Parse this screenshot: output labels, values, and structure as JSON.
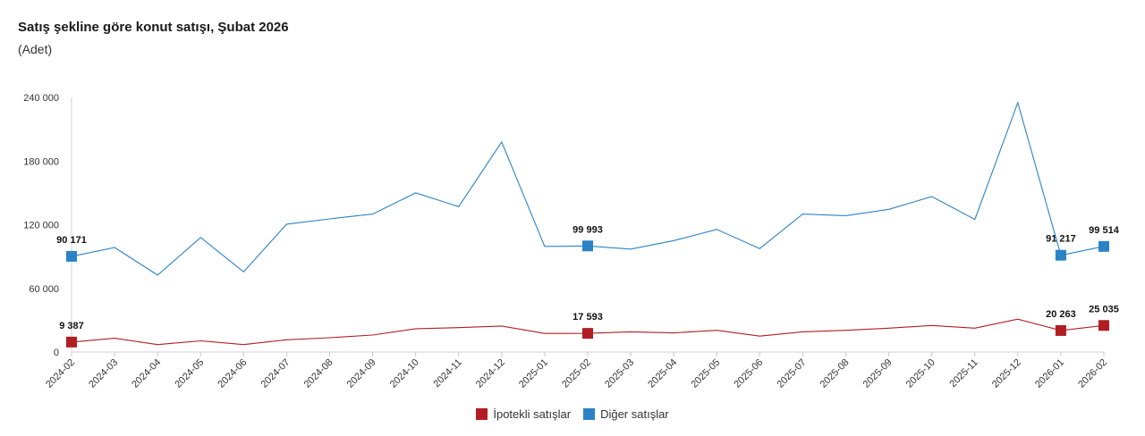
{
  "chart_data": {
    "type": "line",
    "title": "Satış şekline göre konut satışı, Şubat 2026",
    "subtitle": "(Adet)",
    "xlabel": "",
    "ylabel": "",
    "ylim": [
      0,
      240000
    ],
    "yticks": [
      0,
      60000,
      120000,
      180000,
      240000
    ],
    "ytick_labels": [
      "0",
      "60 000",
      "120 000",
      "180 000",
      "240 000"
    ],
    "categories": [
      "2024-02",
      "2024-03",
      "2024-04",
      "2024-05",
      "2024-06",
      "2024-07",
      "2024-08",
      "2024-09",
      "2024-10",
      "2024-11",
      "2024-12",
      "2025-01",
      "2025-02",
      "2025-03",
      "2025-04",
      "2025-05",
      "2025-06",
      "2025-07",
      "2025-08",
      "2025-09",
      "2025-10",
      "2025-11",
      "2025-12",
      "2026-01",
      "2026-02"
    ],
    "series": [
      {
        "name": "İpotekli satışlar",
        "color": "#b01e23",
        "values": [
          9387,
          13000,
          7000,
          10500,
          7000,
          11500,
          13500,
          16000,
          22000,
          23000,
          24500,
          17500,
          17593,
          19000,
          18000,
          20500,
          15000,
          19000,
          20500,
          22500,
          25000,
          22500,
          31000,
          20263,
          25035
        ],
        "labels": [
          {
            "index": 0,
            "text": "9 387"
          },
          {
            "index": 12,
            "text": "17 593"
          },
          {
            "index": 23,
            "text": "20 263"
          },
          {
            "index": 24,
            "text": "25 035"
          }
        ]
      },
      {
        "name": "Diğer satışlar",
        "color": "#2b83c6",
        "values": [
          90171,
          98500,
          72500,
          108000,
          75500,
          120500,
          125500,
          130000,
          150000,
          137000,
          198000,
          99500,
          99993,
          97000,
          105000,
          115500,
          97500,
          130000,
          128500,
          134500,
          146500,
          125000,
          235000,
          91217,
          99514
        ],
        "labels": [
          {
            "index": 0,
            "text": "90 171"
          },
          {
            "index": 12,
            "text": "99 993"
          },
          {
            "index": 23,
            "text": "91 217"
          },
          {
            "index": 24,
            "text": "99 514"
          }
        ]
      }
    ],
    "legend_position": "bottom"
  }
}
